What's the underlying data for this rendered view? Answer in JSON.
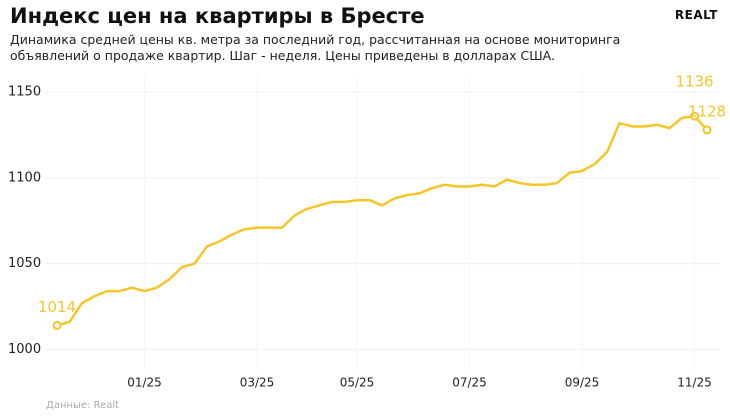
{
  "chart_data": {
    "type": "line",
    "title": "Индекс цен на квартиры в Бресте",
    "subtitle": [
      "Динамика средней цены кв. метра за последний год, рассчитанная на основе мониторинга",
      "объявлений о продаже квартир. Шаг - неделя. Цены приведены в долларах США."
    ],
    "brand": "REALT",
    "source": "Данные: Realt",
    "color": "#f6c52a",
    "grid": true,
    "categories": [
      null,
      null,
      null,
      null,
      null,
      null,
      null,
      "01/25",
      null,
      null,
      null,
      null,
      null,
      null,
      null,
      null,
      "03/25",
      null,
      null,
      null,
      null,
      null,
      null,
      null,
      "05/25",
      null,
      null,
      null,
      null,
      null,
      null,
      null,
      null,
      "07/25",
      null,
      null,
      null,
      null,
      null,
      null,
      null,
      null,
      "09/25",
      null,
      null,
      null,
      null,
      null,
      null,
      null,
      null,
      "11/25",
      null
    ],
    "values": [
      1014,
      1016,
      1027,
      1031,
      1034,
      1034,
      1036,
      1034,
      1036,
      1041,
      1048,
      1050,
      1060,
      1063,
      1067,
      1070,
      1071,
      1071,
      1071,
      1078,
      1082,
      1084,
      1086,
      1086,
      1087,
      1087,
      1084,
      1088,
      1090,
      1091,
      1094,
      1096,
      1095,
      1095,
      1096,
      1095,
      1099,
      1097,
      1096,
      1096,
      1097,
      1103,
      1104,
      1108,
      1115,
      1132,
      1130,
      1130,
      1131,
      1129,
      1135,
      1136,
      1128
    ],
    "value_labels": [
      1014,
      null,
      null,
      null,
      null,
      null,
      null,
      null,
      null,
      null,
      null,
      null,
      null,
      null,
      null,
      null,
      null,
      null,
      null,
      null,
      null,
      null,
      null,
      null,
      null,
      null,
      null,
      null,
      null,
      null,
      null,
      null,
      null,
      null,
      null,
      null,
      null,
      null,
      null,
      null,
      null,
      null,
      null,
      null,
      null,
      null,
      null,
      null,
      null,
      null,
      null,
      1136,
      1128
    ],
    "ylim": [
      988,
      1160
    ],
    "yticks": [
      1000,
      1050,
      1100,
      1150
    ]
  }
}
